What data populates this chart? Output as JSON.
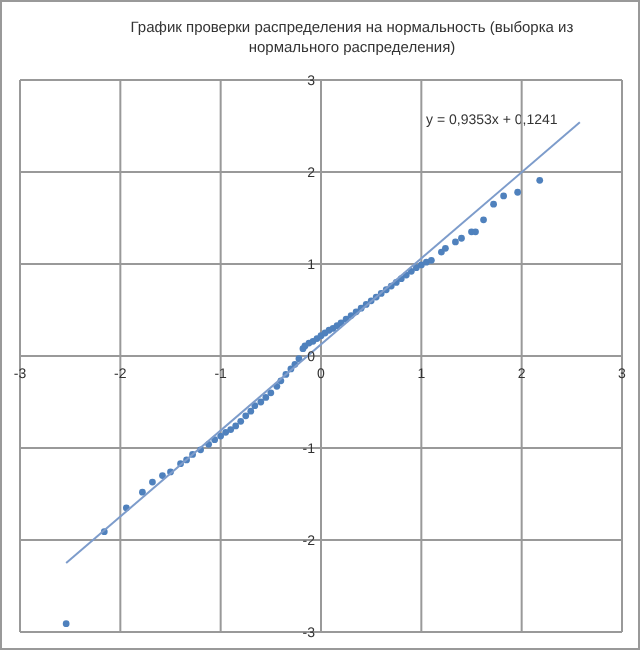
{
  "chart_data": {
    "type": "scatter",
    "title": "График проверки распределения на нормальность (выборка  из нормального распределения)",
    "annotations": [
      "y = 0,9353x + 0,1241"
    ],
    "series": [
      {
        "color": "#4f81bd",
        "marker": "circle",
        "x": [
          -2.54,
          -2.16,
          -1.94,
          -1.78,
          -1.68,
          -1.58,
          -1.5,
          -1.4,
          -1.34,
          -1.28,
          -1.2,
          -1.12,
          -1.06,
          -1.0,
          -0.95,
          -0.9,
          -0.85,
          -0.8,
          -0.75,
          -0.7,
          -0.66,
          -0.6,
          -0.55,
          -0.5,
          -0.44,
          -0.4,
          -0.35,
          -0.3,
          -0.26,
          -0.22,
          -0.18,
          -0.16,
          -0.12,
          -0.08,
          -0.04,
          0,
          0.04,
          0.08,
          0.12,
          0.16,
          0.2,
          0.25,
          0.3,
          0.35,
          0.4,
          0.45,
          0.5,
          0.55,
          0.6,
          0.65,
          0.7,
          0.75,
          0.8,
          0.85,
          0.9,
          0.95,
          1.0,
          1.05,
          1.1,
          1.2,
          1.24,
          1.34,
          1.4,
          1.5,
          1.54,
          1.62,
          1.72,
          1.82,
          1.96,
          2.18
        ],
        "values": [
          -2.91,
          -1.91,
          -1.65,
          -1.48,
          -1.37,
          -1.3,
          -1.26,
          -1.17,
          -1.13,
          -1.07,
          -1.02,
          -0.96,
          -0.91,
          -0.87,
          -0.83,
          -0.8,
          -0.76,
          -0.71,
          -0.65,
          -0.6,
          -0.54,
          -0.5,
          -0.45,
          -0.4,
          -0.33,
          -0.27,
          -0.2,
          -0.14,
          -0.09,
          -0.03,
          0.08,
          0.11,
          0.14,
          0.16,
          0.19,
          0.22,
          0.25,
          0.28,
          0.3,
          0.33,
          0.36,
          0.4,
          0.44,
          0.48,
          0.52,
          0.56,
          0.6,
          0.64,
          0.68,
          0.72,
          0.76,
          0.8,
          0.84,
          0.88,
          0.92,
          0.96,
          0.99,
          1.02,
          1.04,
          1.13,
          1.17,
          1.24,
          1.28,
          1.35,
          1.35,
          1.48,
          1.65,
          1.74,
          1.78,
          1.91
        ]
      },
      {
        "type": "line",
        "marker": "none",
        "color": "#7d9ccb",
        "x": [
          -2.54,
          2.58
        ],
        "values": [
          -2.25,
          2.54
        ]
      }
    ],
    "xlim": [
      -3,
      3
    ],
    "xticks": [
      -3,
      -2,
      -1,
      0,
      1,
      2,
      3
    ],
    "ylim": [
      -3,
      3
    ],
    "yticks": [
      -3,
      -2,
      -1,
      0,
      1,
      2,
      3
    ],
    "grid": true
  }
}
